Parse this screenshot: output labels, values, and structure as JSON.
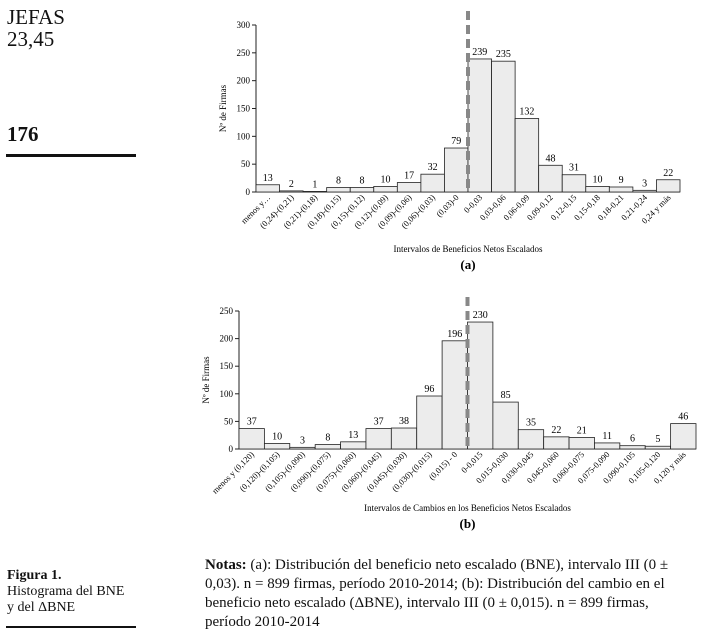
{
  "header": {
    "journal_line1": "JEFAS",
    "journal_line2": "23,45",
    "page_number": "176"
  },
  "figure_caption": {
    "label": "Figura 1.",
    "line1": "Histograma del BNE",
    "line2": "y del ΔBNE"
  },
  "notes": {
    "label": "Notas:",
    "text": " (a): Distribución del beneficio neto escalado (BNE), intervalo III (0 ± 0,03). n = 899 firmas, período 2010-2014; (b): Distribución del cambio en el beneficio neto escalado (ΔBNE), intervalo III (0 ± 0,015). n = 899 firmas, período 2010-2014"
  },
  "chart_data": [
    {
      "type": "bar",
      "panel_label": "(a)",
      "xlabel": "Intervalos de Beneficios Netos Escalados",
      "ylabel": "Nº de Firmas",
      "ylim": [
        0,
        300
      ],
      "yticks": [
        0,
        50,
        100,
        150,
        200,
        250,
        300
      ],
      "categories": [
        "menos y…",
        "(0,24)-(0,21)",
        "(0,21)-(0,18)",
        "(0,18)-(0,15)",
        "(0,15)-(0,12)",
        "(0,12)-(0,09)",
        "(0,09)-(0,06)",
        "(0,06)-(0,03)",
        "(0,03)-0",
        "0-0,03",
        "0,03-0,06",
        "0,06-0,09",
        "0,09-0,12",
        "0,12-0,15",
        "0,15-0,18",
        "0,18-0,21",
        "0,21-0,24",
        "0,24 y más"
      ],
      "values": [
        13,
        2,
        1,
        8,
        8,
        10,
        17,
        32,
        79,
        239,
        235,
        132,
        48,
        31,
        10,
        9,
        3,
        22
      ],
      "zero_line": "dashed vertical between (0,03)-0 and 0-0,03",
      "bar_color": "#ececec"
    },
    {
      "type": "bar",
      "panel_label": "(b)",
      "xlabel": "Intervalos de Cambios en los Beneficios Netos Escalados",
      "ylabel": "Nº de Firmas",
      "ylim": [
        0,
        250
      ],
      "yticks": [
        0,
        50,
        100,
        150,
        200,
        250
      ],
      "categories": [
        "menos y (0,120)",
        "(0,120)-(0,105)",
        "(0,105)-(0,090)",
        "(0,090)-(0,075)",
        "(0,075)-(0,060)",
        "(0,060)-(0,045)",
        "(0,045)-(0,030)",
        "(0,030)-(0,015)",
        "(0,015) - 0",
        "0-0,015",
        "0,015-0,030",
        "0,030-0,045",
        "0,045-0,060",
        "0,060-0,075",
        "0,075-0,090",
        "0,090-0,105",
        "0,105-0,120",
        "0,120 y más"
      ],
      "values": [
        37,
        10,
        3,
        8,
        13,
        37,
        38,
        96,
        196,
        230,
        85,
        35,
        22,
        21,
        11,
        6,
        5,
        46
      ],
      "zero_line": "dashed vertical between (0,015) - 0 and 0-0,015",
      "bar_color": "#ececec"
    }
  ]
}
